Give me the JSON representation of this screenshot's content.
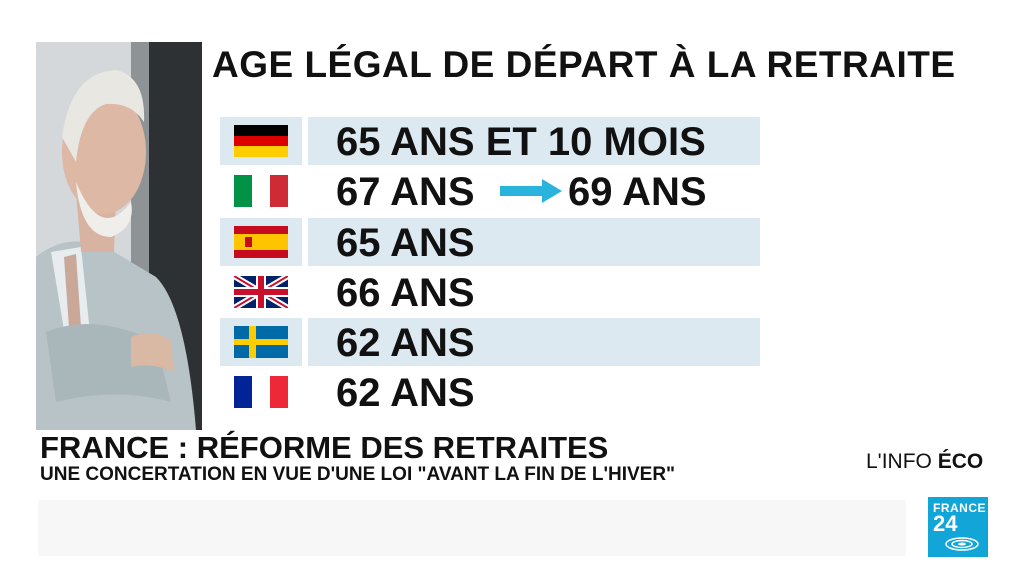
{
  "title": "AGE LÉGAL DE DÉPART À LA RETRAITE",
  "rows": [
    {
      "flag_icon": "germany-flag-icon",
      "value": "65 ANS ET 10 MOIS"
    },
    {
      "flag_icon": "italy-flag-icon",
      "value": "67 ANS",
      "value_after_arrow": "69 ANS"
    },
    {
      "flag_icon": "spain-flag-icon",
      "value": "65 ANS"
    },
    {
      "flag_icon": "uk-flag-icon",
      "value": "66 ANS"
    },
    {
      "flag_icon": "sweden-flag-icon",
      "value": "62 ANS"
    },
    {
      "flag_icon": "france-flag-icon",
      "value": "62 ANS"
    }
  ],
  "headline": "FRANCE : RÉFORME DES RETRAITES",
  "subline": "UNE CONCERTATION EN VUE D'UNE LOI \"AVANT LA FIN DE L'HIVER\"",
  "brand": {
    "prefix": "L'INFO ",
    "bold": "ÉCO"
  },
  "logo": {
    "line1": "FRANCE",
    "line2": "24"
  },
  "colors": {
    "row_shade": "#dde9f1",
    "arrow": "#29b3dd",
    "logo_bg": "#12a6d8"
  }
}
